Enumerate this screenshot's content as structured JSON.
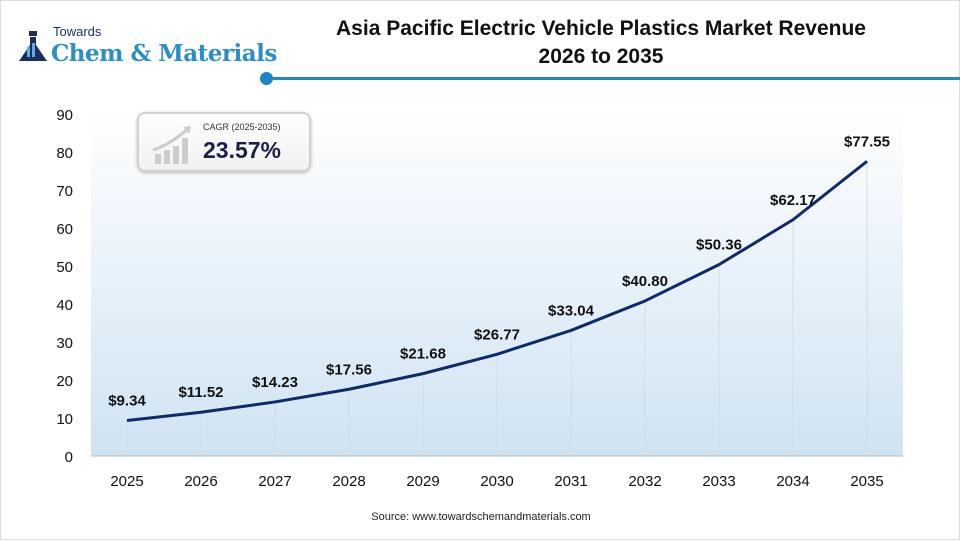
{
  "logo": {
    "line1": "Towards",
    "line2": "Chem & Materials"
  },
  "title": {
    "line1": "Asia Pacific Electric Vehicle Plastics Market Revenue",
    "line2": "2026 to 2035"
  },
  "cagr": {
    "label": "CAGR (2025-2035)",
    "value": "23.57%"
  },
  "source": "Source: www.towardschemandmaterials.com",
  "colors": {
    "line": "#0f2a6b",
    "accent": "#1e8bbd",
    "area_gradient": "#cfe3f3"
  },
  "chart_data": {
    "type": "line",
    "categories": [
      "2025",
      "2026",
      "2027",
      "2028",
      "2029",
      "2030",
      "2031",
      "2032",
      "2033",
      "2034",
      "2035"
    ],
    "values": [
      9.34,
      11.52,
      14.23,
      17.56,
      21.68,
      26.77,
      33.04,
      40.8,
      50.36,
      62.17,
      77.55
    ],
    "data_labels": [
      "$9.34",
      "$11.52",
      "$14.23",
      "$17.56",
      "$21.68",
      "$26.77",
      "$33.04",
      "$40.80",
      "$50.36",
      "$62.17",
      "$77.55"
    ],
    "yticks": [
      "0",
      "10",
      "20",
      "30",
      "40",
      "50",
      "60",
      "70",
      "80",
      "90"
    ],
    "ylim": [
      0,
      90
    ],
    "grid": "vertical",
    "legend": "none"
  }
}
